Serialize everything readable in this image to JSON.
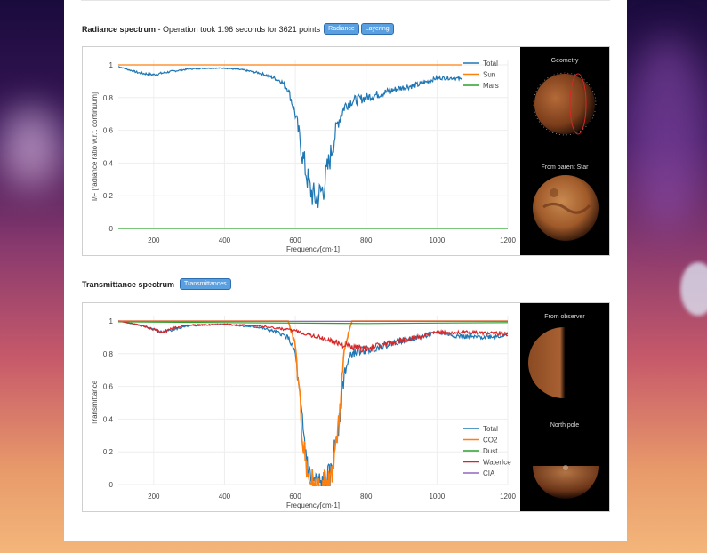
{
  "radiance": {
    "title": "Radiance spectrum",
    "subtitle": "- Operation took 1.96 seconds for 3621 points",
    "tags": [
      "Radiance",
      "Layering"
    ],
    "side_labels": [
      "Geometry",
      "From parent Star"
    ]
  },
  "transmittance": {
    "title": "Transmittance spectrum",
    "tags": [
      "Transmittances"
    ],
    "side_labels": [
      "From observer",
      "North pole"
    ]
  },
  "chart_data": [
    {
      "type": "line",
      "title": "",
      "xlabel": "Frequency[cm-1]",
      "ylabel": "I/F [radiance ratio w.r.t. continuum]",
      "xlim": [
        100,
        1200
      ],
      "ylim": [
        0,
        1
      ],
      "x_ticks": [
        200,
        400,
        600,
        800,
        1000,
        1200
      ],
      "y_ticks": [
        0,
        0.2,
        0.4,
        0.6,
        0.8,
        1
      ],
      "y_tick_labels": [
        "0",
        "0.2",
        "0.4",
        "0.6",
        "0.8",
        "1"
      ],
      "legend_position": "top-right",
      "series": [
        {
          "name": "Total",
          "color": "#1f77b4",
          "x": [
            100,
            130,
            160,
            200,
            250,
            300,
            350,
            400,
            450,
            500,
            540,
            560,
            580,
            600,
            620,
            640,
            650,
            660,
            680,
            700,
            720,
            740,
            760,
            800,
            850,
            900,
            950,
            1000,
            1050,
            1070
          ],
          "y": [
            0.99,
            0.97,
            0.95,
            0.94,
            0.96,
            0.975,
            0.98,
            0.98,
            0.97,
            0.95,
            0.92,
            0.9,
            0.85,
            0.7,
            0.45,
            0.25,
            0.2,
            0.18,
            0.25,
            0.45,
            0.65,
            0.75,
            0.78,
            0.8,
            0.83,
            0.86,
            0.88,
            0.92,
            0.92,
            0.91
          ]
        },
        {
          "name": "Sun",
          "color": "#ff7f0e",
          "x": [
            100,
            1070
          ],
          "y": [
            1,
            1
          ]
        },
        {
          "name": "Mars",
          "color": "#2ca02c",
          "x": [
            100,
            1200
          ],
          "y": [
            0,
            0
          ]
        }
      ]
    },
    {
      "type": "line",
      "title": "",
      "xlabel": "Frequency[cm-1]",
      "ylabel": "Transmittance",
      "xlim": [
        100,
        1200
      ],
      "ylim": [
        0,
        1
      ],
      "x_ticks": [
        200,
        400,
        600,
        800,
        1000,
        1200
      ],
      "y_ticks": [
        0,
        0.2,
        0.4,
        0.6,
        0.8,
        1
      ],
      "y_tick_labels": [
        "0",
        "0.2",
        "0.4",
        "0.6",
        "0.8",
        "1"
      ],
      "legend_position": "bottom-right",
      "series": [
        {
          "name": "Total",
          "color": "#1f77b4",
          "x": [
            100,
            150,
            200,
            220,
            260,
            300,
            400,
            500,
            550,
            580,
            600,
            620,
            640,
            660,
            680,
            700,
            720,
            740,
            760,
            780,
            800,
            850,
            900,
            950,
            1000,
            1050,
            1100,
            1200
          ],
          "y": [
            1,
            0.98,
            0.95,
            0.93,
            0.95,
            0.97,
            0.98,
            0.96,
            0.93,
            0.9,
            0.8,
            0.35,
            0.05,
            0.0,
            0.0,
            0.05,
            0.35,
            0.7,
            0.8,
            0.82,
            0.82,
            0.85,
            0.88,
            0.9,
            0.93,
            0.91,
            0.9,
            0.91
          ]
        },
        {
          "name": "CO2",
          "color": "#ff7f0e",
          "x": [
            100,
            580,
            600,
            620,
            640,
            660,
            680,
            700,
            720,
            740,
            760,
            1200
          ],
          "y": [
            1,
            1,
            0.85,
            0.3,
            0.02,
            0.0,
            0.0,
            0.02,
            0.3,
            0.85,
            1,
            1
          ]
        },
        {
          "name": "Dust",
          "color": "#2ca02c",
          "x": [
            100,
            400,
            800,
            1200
          ],
          "y": [
            0.995,
            0.99,
            0.985,
            0.99
          ]
        },
        {
          "name": "WaterIce",
          "color": "#d62728",
          "x": [
            100,
            150,
            200,
            220,
            260,
            300,
            400,
            500,
            600,
            700,
            760,
            800,
            900,
            1000,
            1100,
            1200
          ],
          "y": [
            1,
            0.98,
            0.95,
            0.93,
            0.96,
            0.975,
            0.98,
            0.97,
            0.94,
            0.88,
            0.84,
            0.83,
            0.88,
            0.93,
            0.93,
            0.92
          ]
        },
        {
          "name": "CIA",
          "color": "#9467bd",
          "x": [
            100,
            1200
          ],
          "y": [
            0.998,
            0.998
          ]
        }
      ]
    }
  ]
}
